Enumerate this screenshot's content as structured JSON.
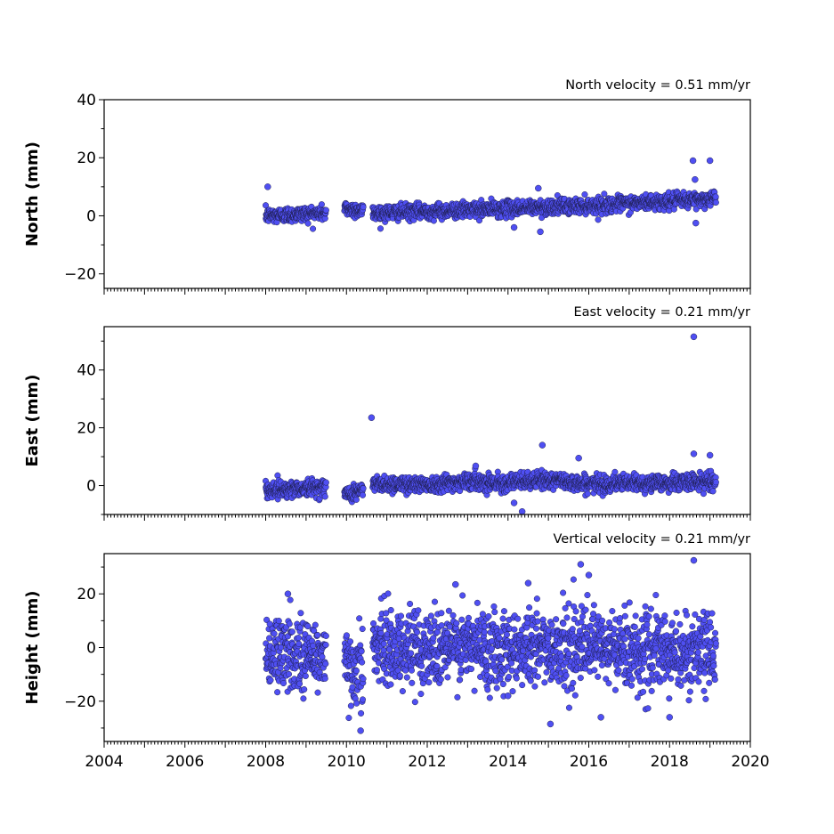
{
  "chart_data": [
    {
      "type": "scatter",
      "id": "north",
      "ylabel": "North (mm)",
      "annotation": "North velocity = 0.51 mm/yr",
      "velocity_mm_per_yr": 0.51,
      "xlim": [
        2004,
        2020
      ],
      "ylim": [
        -25,
        40
      ],
      "yticks": [
        -20,
        0,
        20,
        40
      ],
      "xticks": [
        2004,
        2006,
        2008,
        2010,
        2012,
        2014,
        2016,
        2018,
        2020
      ],
      "show_xtick_labels": false,
      "grid": false,
      "marker_color": "#4f4ff2",
      "data_spans": [
        [
          2008.0,
          2009.5
        ],
        [
          2009.95,
          2010.42
        ],
        [
          2010.65,
          2019.15
        ]
      ],
      "baseline": [
        [
          2008.0,
          0.0
        ],
        [
          2009.5,
          1.0
        ],
        [
          2010.0,
          2.5
        ],
        [
          2010.7,
          1.0
        ],
        [
          2012.0,
          1.5
        ],
        [
          2014.0,
          2.5
        ],
        [
          2016.0,
          3.5
        ],
        [
          2018.0,
          5.0
        ],
        [
          2019.1,
          6.0
        ]
      ],
      "scatter_sd": 1.3,
      "outliers": [
        [
          2008.05,
          10
        ],
        [
          2018.58,
          19
        ],
        [
          2018.63,
          12.5
        ],
        [
          2019.0,
          19
        ],
        [
          2014.15,
          -4
        ],
        [
          2014.8,
          -5.5
        ],
        [
          2014.75,
          9.5
        ],
        [
          2018.65,
          -2.5
        ]
      ]
    },
    {
      "type": "scatter",
      "id": "east",
      "ylabel": "East (mm)",
      "annotation": "East velocity = 0.21 mm/yr",
      "velocity_mm_per_yr": 0.21,
      "xlim": [
        2004,
        2020
      ],
      "ylim": [
        -10,
        55
      ],
      "yticks": [
        0,
        20,
        40
      ],
      "xticks": [
        2004,
        2006,
        2008,
        2010,
        2012,
        2014,
        2016,
        2018,
        2020
      ],
      "show_xtick_labels": false,
      "grid": false,
      "marker_color": "#4f4ff2",
      "data_spans": [
        [
          2008.0,
          2009.5
        ],
        [
          2009.95,
          2010.42
        ],
        [
          2010.65,
          2019.15
        ]
      ],
      "baseline": [
        [
          2008.0,
          -1.5
        ],
        [
          2009.5,
          -0.5
        ],
        [
          2010.0,
          -3.0
        ],
        [
          2010.4,
          -1.5
        ],
        [
          2010.7,
          0.5
        ],
        [
          2012.0,
          0.5
        ],
        [
          2013.0,
          1.5
        ],
        [
          2014.0,
          1.0
        ],
        [
          2015.0,
          2.0
        ],
        [
          2016.0,
          0.5
        ],
        [
          2018.0,
          1.0
        ],
        [
          2019.1,
          1.5
        ]
      ],
      "scatter_sd": 1.4,
      "outliers": [
        [
          2010.62,
          23.5
        ],
        [
          2018.6,
          51.5
        ],
        [
          2018.6,
          11
        ],
        [
          2019.0,
          10.5
        ],
        [
          2014.85,
          14
        ],
        [
          2014.35,
          -9
        ],
        [
          2015.75,
          9.5
        ],
        [
          2014.15,
          -6
        ],
        [
          2013.2,
          6.8
        ]
      ]
    },
    {
      "type": "scatter",
      "id": "height",
      "ylabel": "Height (mm)",
      "annotation": "Vertical velocity = 0.21 mm/yr",
      "velocity_mm_per_yr": 0.21,
      "xlim": [
        2004,
        2020
      ],
      "ylim": [
        -35,
        35
      ],
      "yticks": [
        -20,
        0,
        20
      ],
      "xticks": [
        2004,
        2006,
        2008,
        2010,
        2012,
        2014,
        2016,
        2018,
        2020
      ],
      "xticklabels": [
        "2004",
        "2006",
        "2008",
        "2010",
        "2012",
        "2014",
        "2016",
        "2018",
        "2020"
      ],
      "show_xtick_labels": true,
      "grid": false,
      "marker_color": "#4f4ff2",
      "data_spans": [
        [
          2008.0,
          2009.5
        ],
        [
          2009.95,
          2010.42
        ],
        [
          2010.65,
          2019.15
        ]
      ],
      "baseline": [
        [
          2008.0,
          -2.0
        ],
        [
          2009.5,
          -3.0
        ],
        [
          2010.0,
          -8.0
        ],
        [
          2010.4,
          -6.0
        ],
        [
          2010.7,
          0.0
        ],
        [
          2012.0,
          0.0
        ],
        [
          2014.0,
          0.0
        ],
        [
          2016.0,
          0.0
        ],
        [
          2018.0,
          -2.0
        ],
        [
          2019.1,
          -2.0
        ]
      ],
      "scatter_sd": 7.0,
      "outliers": [
        [
          2010.35,
          -31
        ],
        [
          2015.8,
          31
        ],
        [
          2018.6,
          32.5
        ],
        [
          2015.05,
          -28.5
        ],
        [
          2016.3,
          -26
        ],
        [
          2016.0,
          27
        ],
        [
          2018.0,
          -26
        ],
        [
          2014.5,
          24
        ],
        [
          2012.7,
          23.5
        ],
        [
          2008.55,
          20
        ],
        [
          2014.0,
          -18
        ]
      ]
    }
  ]
}
